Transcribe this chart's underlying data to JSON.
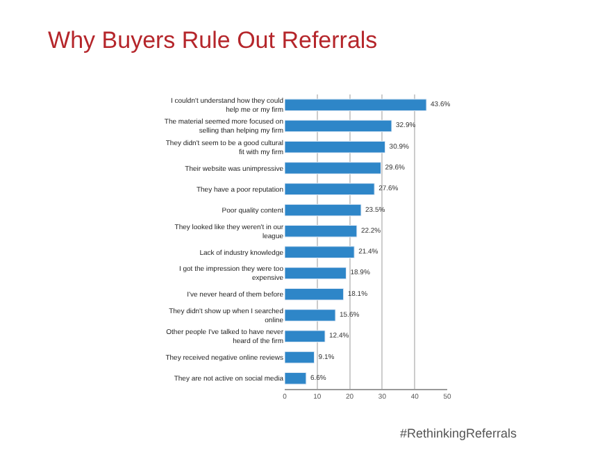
{
  "chart_data": {
    "type": "bar",
    "orientation": "horizontal",
    "title": "Why Buyers Rule Out Referrals",
    "categories": [
      "I couldn't understand how they could help me or my firm",
      "The material seemed more focused on selling than helping my firm",
      "They didn't seem to be a good cultural fit with my firm",
      "Their website was unimpressive",
      "They have a poor reputation",
      "Poor quality content",
      "They looked like they weren't in our league",
      "Lack of industry knowledge",
      "I got the impression they were too expensive",
      "I've never heard of them before",
      "They didn't show up when I searched online",
      "Other people I've talked to have never heard of the firm",
      "They received negative online reviews",
      "They are not active on social media"
    ],
    "values": [
      43.6,
      32.9,
      30.9,
      29.6,
      27.6,
      23.5,
      22.2,
      21.4,
      18.9,
      18.1,
      15.6,
      12.4,
      9.1,
      6.6
    ],
    "value_labels": [
      "43.6%",
      "32.9%",
      "30.9%",
      "29.6%",
      "27.6%",
      "23.5%",
      "22.2%",
      "21.4%",
      "18.9%",
      "18.1%",
      "15.6%",
      "12.4%",
      "9.1%",
      "6.6%"
    ],
    "color": "#2e86c8",
    "xlim": [
      0,
      50
    ],
    "xticks": [
      0,
      10,
      20,
      30,
      40,
      50
    ],
    "grid": "x",
    "annotations": [
      "#RethinkingReferrals"
    ]
  }
}
